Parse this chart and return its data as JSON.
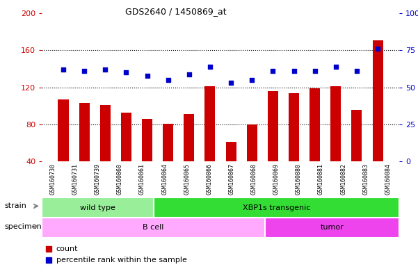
{
  "title": "GDS2640 / 1450869_at",
  "categories": [
    "GSM160730",
    "GSM160731",
    "GSM160739",
    "GSM160860",
    "GSM160861",
    "GSM160864",
    "GSM160865",
    "GSM160866",
    "GSM160867",
    "GSM160868",
    "GSM160869",
    "GSM160880",
    "GSM160881",
    "GSM160882",
    "GSM160883",
    "GSM160884"
  ],
  "counts": [
    107,
    103,
    101,
    93,
    86,
    81,
    91,
    121,
    61,
    80,
    116,
    114,
    119,
    121,
    96,
    171
  ],
  "percentiles": [
    62,
    61,
    62,
    60,
    58,
    55,
    59,
    64,
    53,
    55,
    61,
    61,
    61,
    64,
    61,
    76
  ],
  "bar_color": "#cc0000",
  "dot_color": "#0000cc",
  "ylim_left": [
    40,
    200
  ],
  "ylim_right": [
    0,
    100
  ],
  "yticks_left": [
    40,
    80,
    120,
    160,
    200
  ],
  "yticks_right": [
    0,
    25,
    50,
    75,
    100
  ],
  "strain_groups": [
    {
      "label": "wild type",
      "start": 0,
      "end": 5,
      "color": "#99ee99"
    },
    {
      "label": "XBP1s transgenic",
      "start": 5,
      "end": 16,
      "color": "#33dd33"
    }
  ],
  "specimen_groups": [
    {
      "label": "B cell",
      "start": 0,
      "end": 10,
      "color": "#ffaaff"
    },
    {
      "label": "tumor",
      "start": 10,
      "end": 16,
      "color": "#ee44ee"
    }
  ],
  "strain_label": "strain",
  "specimen_label": "specimen",
  "legend_count_label": "count",
  "legend_pct_label": "percentile rank within the sample",
  "right_axis_color": "#0000cc",
  "left_axis_color": "#cc0000",
  "grid_color": "black",
  "tick_bg_color": "#cccccc"
}
